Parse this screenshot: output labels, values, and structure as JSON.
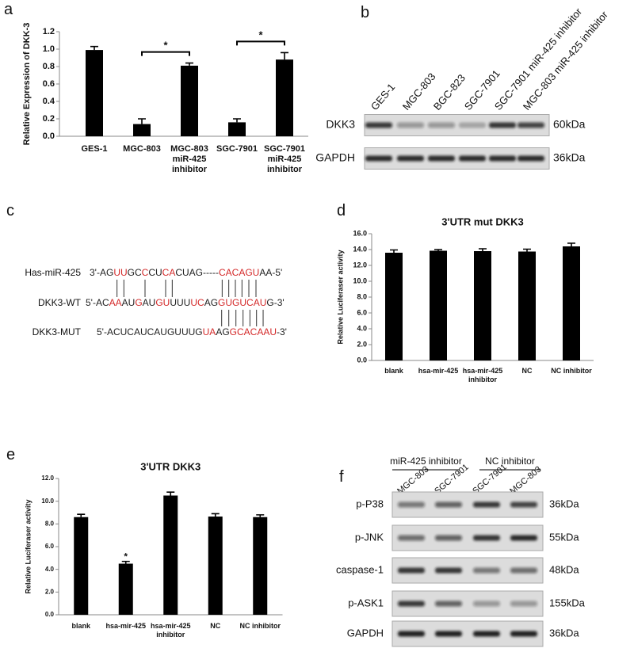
{
  "chart_data": [
    {
      "panel": "a",
      "type": "bar",
      "ylabel": "Relative Expression of DKK-3",
      "categories": [
        "GES-1",
        "MGC-803",
        "MGC-803 miR-425 inhibitor",
        "SGC-7901",
        "SGC-7901 miR-425 inhibitor"
      ],
      "values": [
        0.99,
        0.14,
        0.81,
        0.16,
        0.88
      ],
      "errors": [
        0.04,
        0.06,
        0.03,
        0.04,
        0.08
      ],
      "color": "#000000",
      "ylim": [
        0,
        1.2
      ],
      "yticks": [
        {
          "value": 0,
          "label": "0.0"
        },
        0.2,
        0.4,
        0.6,
        0.8,
        {
          "value": 1,
          "label": "1.0"
        },
        1.2
      ],
      "brackets": [
        {
          "between": [
            1,
            2
          ],
          "label": "*"
        },
        {
          "between": [
            3,
            4
          ],
          "label": "*"
        }
      ]
    },
    {
      "panel": "d",
      "type": "bar",
      "title": "3'UTR mut DKK3",
      "ylabel": "Relative Luciferaser activity",
      "categories": [
        "blank",
        "hsa-mir-425",
        "hsa-mir-425 inhibitor",
        "NC",
        "NC inhibitor"
      ],
      "values": [
        13.6,
        13.85,
        13.8,
        13.75,
        14.4
      ],
      "errors": [
        0.35,
        0.15,
        0.3,
        0.3,
        0.4
      ],
      "color": "#000000",
      "ylim": [
        0,
        16
      ],
      "yticks": [
        {
          "value": 0,
          "label": "0.0"
        },
        {
          "value": 2,
          "label": "2.0"
        },
        {
          "value": 4,
          "label": "4.0"
        },
        {
          "value": 6,
          "label": "6.0"
        },
        {
          "value": 8,
          "label": "8.0"
        },
        {
          "value": 10,
          "label": "10.0"
        },
        {
          "value": 12,
          "label": "12.0"
        },
        {
          "value": 14,
          "label": "14.0"
        },
        {
          "value": 16,
          "label": "16.0"
        }
      ]
    },
    {
      "panel": "e",
      "type": "bar",
      "title": "3'UTR DKK3",
      "ylabel": "Relative Luciferaser activity",
      "categories": [
        "blank",
        "hsa-mir-425",
        "hsa-mir-425 inhibitor",
        "NC",
        "NC inhibitor"
      ],
      "values": [
        8.6,
        4.5,
        10.5,
        8.65,
        8.6
      ],
      "errors": [
        0.25,
        0.2,
        0.3,
        0.25,
        0.2
      ],
      "color": "#000000",
      "ylim": [
        0,
        12
      ],
      "yticks": [
        {
          "value": 0,
          "label": "0.0"
        },
        {
          "value": 2,
          "label": "2.0"
        },
        {
          "value": 4,
          "label": "4.0"
        },
        {
          "value": 6,
          "label": "6.0"
        },
        {
          "value": 8,
          "label": "8.0"
        },
        {
          "value": 10,
          "label": "10.0"
        },
        {
          "value": 12,
          "label": "12.0"
        }
      ],
      "significance": [
        null,
        "*",
        null,
        null,
        null
      ]
    }
  ],
  "blot_b": {
    "panel": "b",
    "lanes": [
      "GES-1",
      "MGC-803",
      "BGC-823",
      "SGC-7901",
      "SGC-7901 miR-425 inhibitor",
      "MGC-803 miR-425 inhibitor"
    ],
    "rows": [
      {
        "name": "DKK3",
        "size": "60kDa"
      },
      {
        "name": "GAPDH",
        "size": "36kDa"
      }
    ]
  },
  "sequence_c": {
    "panel": "c",
    "rows": [
      {
        "name": "Has-miR-425",
        "segments": [
          {
            "text": "3'-AG",
            "color": "#222222"
          },
          {
            "text": "UU",
            "color": "#d42a2a"
          },
          {
            "text": "GC",
            "color": "#222222"
          },
          {
            "text": "C",
            "color": "#d42a2a"
          },
          {
            "text": "CU",
            "color": "#222222"
          },
          {
            "text": "CA",
            "color": "#d42a2a"
          },
          {
            "text": "CUAG-----",
            "color": "#222222"
          },
          {
            "text": "CACAGU",
            "color": "#d42a2a"
          },
          {
            "text": "AA-5'",
            "color": "#222222"
          }
        ]
      },
      {
        "name": "DKK3-WT",
        "segments": [
          {
            "text": "5'-AC",
            "color": "#222222"
          },
          {
            "text": "AA",
            "color": "#d42a2a"
          },
          {
            "text": "AU",
            "color": "#222222"
          },
          {
            "text": "G",
            "color": "#d42a2a"
          },
          {
            "text": "AU",
            "color": "#222222"
          },
          {
            "text": "GU",
            "color": "#d42a2a"
          },
          {
            "text": "UUU",
            "color": "#222222"
          },
          {
            "text": "UC",
            "color": "#d42a2a"
          },
          {
            "text": "AG",
            "color": "#222222"
          },
          {
            "text": "GUGUCAU",
            "color": "#d42a2a"
          },
          {
            "text": "G-3'",
            "color": "#222222"
          }
        ]
      },
      {
        "name": "DKK3-MUT",
        "segments": [
          {
            "text": "5'-ACUCAUCAUGUUUG",
            "color": "#222222"
          },
          {
            "text": "UA",
            "color": "#d42a2a"
          },
          {
            "text": "AG",
            "color": "#222222"
          },
          {
            "text": "GCACAAU",
            "color": "#d42a2a"
          },
          {
            "text": "-3'",
            "color": "#222222"
          }
        ]
      }
    ]
  },
  "blot_f": {
    "panel": "f",
    "groups": [
      "miR-425 inhibitor",
      "NC inhibitor"
    ],
    "lanes": [
      "MGC-803",
      "SGC-7901",
      "SGC-7901",
      "MGC-803"
    ],
    "rows": [
      {
        "name": "p-P38",
        "size": "36kDa"
      },
      {
        "name": "p-JNK",
        "size": "55kDa"
      },
      {
        "name": "caspase-1",
        "size": "48kDa"
      },
      {
        "name": "p-ASK1",
        "size": "155kDa"
      },
      {
        "name": "GAPDH",
        "size": "36kDa"
      }
    ]
  }
}
